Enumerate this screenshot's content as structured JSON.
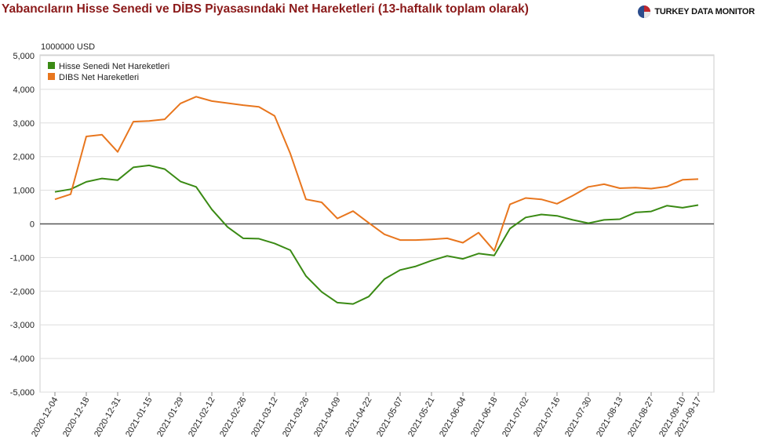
{
  "header": {
    "title": "Yabancıların Hisse Senedi ve DİBS Piyasasındaki Net Hareketleri (13-haftalık toplam olarak)",
    "brand": "TURKEY DATA MONITOR",
    "brand_icon": "pie-logo-icon"
  },
  "chart_data": {
    "type": "line",
    "title": "Yabancıların Hisse Senedi ve DİBS Piyasasındaki Net Hareketleri (13-haftalık toplam olarak)",
    "ylabel": "1000000 USD",
    "xlabel": "",
    "ylim": [
      -5000,
      5000
    ],
    "yticks": [
      5000,
      4000,
      3000,
      2000,
      1000,
      0,
      -1000,
      -2000,
      -3000,
      -4000,
      -5000
    ],
    "ytick_labels": [
      "5,000",
      "4,000",
      "3,000",
      "2,000",
      "1,000",
      "0",
      "-1,000",
      "-2,000",
      "-3,000",
      "-4,000",
      "-5,000"
    ],
    "grid": true,
    "legend_position": "top-left",
    "x": [
      "2020-12-04",
      "2020-12-11",
      "2020-12-18",
      "2020-12-25",
      "2020-12-31",
      "2021-01-08",
      "2021-01-15",
      "2021-01-22",
      "2021-01-29",
      "2021-02-05",
      "2021-02-12",
      "2021-02-19",
      "2021-02-26",
      "2021-03-05",
      "2021-03-12",
      "2021-03-19",
      "2021-03-26",
      "2021-04-02",
      "2021-04-09",
      "2021-04-16",
      "2021-04-22",
      "2021-04-30",
      "2021-05-07",
      "2021-05-14",
      "2021-05-21",
      "2021-05-28",
      "2021-06-04",
      "2021-06-11",
      "2021-06-18",
      "2021-06-25",
      "2021-07-02",
      "2021-07-09",
      "2021-07-16",
      "2021-07-23",
      "2021-07-30",
      "2021-08-06",
      "2021-08-13",
      "2021-08-20",
      "2021-08-27",
      "2021-09-03",
      "2021-09-10",
      "2021-09-17"
    ],
    "x_tick_labels": [
      "2020-12-04",
      "2020-12-18",
      "2020-12-31",
      "2021-01-15",
      "2021-01-29",
      "2021-02-12",
      "2021-02-26",
      "2021-03-12",
      "2021-03-26",
      "2021-04-09",
      "2021-04-22",
      "2021-05-07",
      "2021-05-21",
      "2021-06-04",
      "2021-06-18",
      "2021-07-02",
      "2021-07-16",
      "2021-07-30",
      "2021-08-13",
      "2021-08-27",
      "2021-09-10",
      "2021-09-17"
    ],
    "series": [
      {
        "name": "Hisse Senedi Net Hareketleri",
        "color": "#3a8a14",
        "values": [
          950,
          1030,
          1250,
          1350,
          1300,
          1680,
          1740,
          1630,
          1260,
          1100,
          430,
          -90,
          -430,
          -440,
          -580,
          -780,
          -1550,
          -2020,
          -2340,
          -2380,
          -2160,
          -1640,
          -1370,
          -1260,
          -1090,
          -950,
          -1040,
          -880,
          -940,
          -140,
          190,
          280,
          240,
          120,
          20,
          120,
          140,
          340,
          370,
          540,
          480,
          560
        ]
      },
      {
        "name": "DIBS Net Hareketleri",
        "color": "#e8761e",
        "values": [
          730,
          880,
          2600,
          2650,
          2140,
          3040,
          3060,
          3110,
          3580,
          3780,
          3650,
          3590,
          3530,
          3480,
          3210,
          2090,
          730,
          640,
          160,
          380,
          30,
          -310,
          -480,
          -480,
          -460,
          -430,
          -560,
          -260,
          -800,
          580,
          770,
          730,
          600,
          840,
          1100,
          1180,
          1060,
          1080,
          1050,
          1110,
          1310,
          1330
        ]
      }
    ]
  }
}
